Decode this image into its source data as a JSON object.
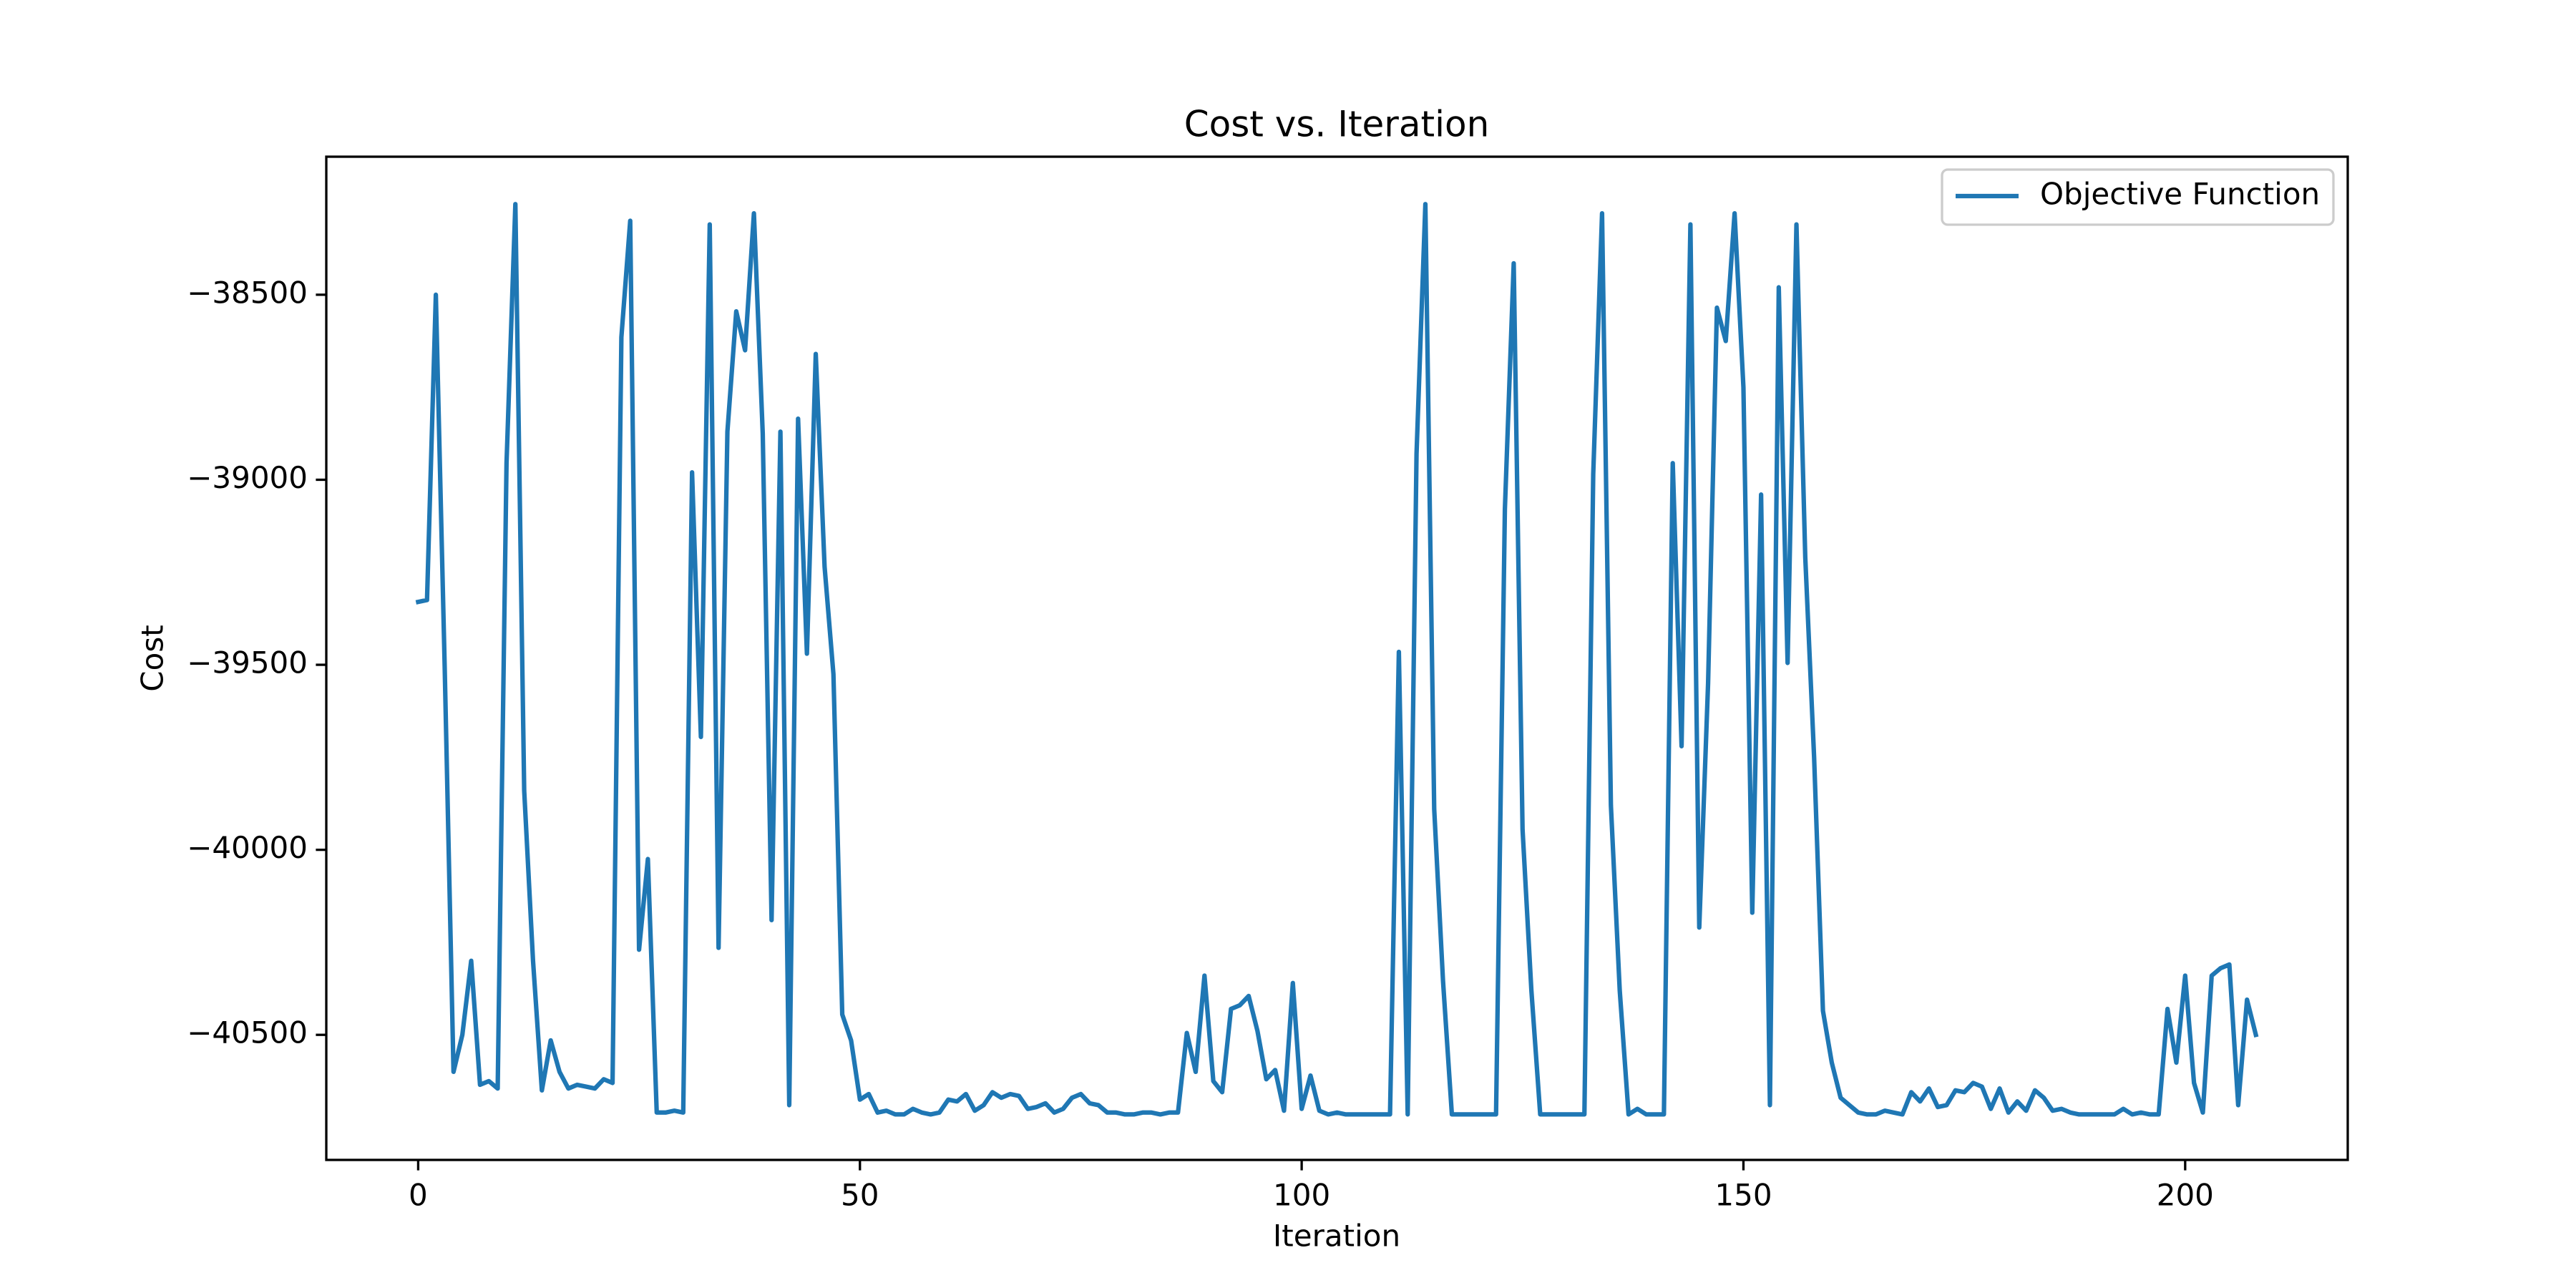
{
  "chart_data": {
    "type": "line",
    "title": "Cost vs. Iteration",
    "x_label": "Iteration",
    "y_label": "Cost",
    "legend": "upper right",
    "grid": false,
    "xlim": [
      -10.4,
      218.4
    ],
    "ylim": [
      -40838,
      -38127
    ],
    "xticks": [
      0,
      50,
      100,
      150,
      200
    ],
    "yticks": [
      {
        "value": -40500,
        "label": "−40500"
      },
      {
        "value": -40000,
        "label": "−40000"
      },
      {
        "value": -39500,
        "label": "−39500"
      },
      {
        "value": -39000,
        "label": "−39000"
      },
      {
        "value": -38500,
        "label": "−38500"
      }
    ],
    "x": [
      0,
      1,
      2,
      3,
      4,
      5,
      6,
      7,
      8,
      9,
      10,
      11,
      12,
      13,
      14,
      15,
      16,
      17,
      18,
      19,
      20,
      21,
      22,
      23,
      24,
      25,
      26,
      27,
      28,
      29,
      30,
      31,
      32,
      33,
      34,
      35,
      36,
      37,
      38,
      39,
      40,
      41,
      42,
      43,
      44,
      45,
      46,
      47,
      48,
      49,
      50,
      51,
      52,
      53,
      54,
      55,
      56,
      57,
      58,
      59,
      60,
      61,
      62,
      63,
      64,
      65,
      66,
      67,
      68,
      69,
      70,
      71,
      72,
      73,
      74,
      75,
      76,
      77,
      78,
      79,
      80,
      81,
      82,
      83,
      84,
      85,
      86,
      87,
      88,
      89,
      90,
      91,
      92,
      93,
      94,
      95,
      96,
      97,
      98,
      99,
      100,
      101,
      102,
      103,
      104,
      105,
      106,
      107,
      108,
      109,
      110,
      111,
      112,
      113,
      114,
      115,
      116,
      117,
      118,
      119,
      120,
      121,
      122,
      123,
      124,
      125,
      126,
      127,
      128,
      129,
      130,
      131,
      132,
      133,
      134,
      135,
      136,
      137,
      138,
      139,
      140,
      141,
      142,
      143,
      144,
      145,
      146,
      147,
      148,
      149,
      150,
      151,
      152,
      153,
      154,
      155,
      156,
      157,
      158,
      159,
      160,
      161,
      162,
      163,
      164,
      165,
      166,
      167,
      168,
      169,
      170,
      171,
      172,
      173,
      174,
      175,
      176,
      177,
      178,
      179,
      180,
      181,
      182,
      183,
      184,
      185,
      186,
      187,
      188,
      189,
      190,
      191,
      192,
      193,
      194,
      195,
      196,
      197,
      198,
      199,
      200,
      201,
      202,
      203,
      204,
      205,
      206,
      207,
      208
    ],
    "series": [
      {
        "name": "Objective Function",
        "color": "#1f77b4",
        "values": [
          -39330,
          -39325,
          -38500,
          -39505,
          -40600,
          -40500,
          -40300,
          -40635,
          -40625,
          -40645,
          -38955,
          -38255,
          -39840,
          -40300,
          -40650,
          -40515,
          -40600,
          -40645,
          -40635,
          -40640,
          -40645,
          -40620,
          -40630,
          -38615,
          -38300,
          -40270,
          -40025,
          -40710,
          -40710,
          -40705,
          -40710,
          -38980,
          -39695,
          -38310,
          -40265,
          -38870,
          -38545,
          -38650,
          -38280,
          -38875,
          -40190,
          -38870,
          -40690,
          -38835,
          -39470,
          -38660,
          -39235,
          -39525,
          -40445,
          -40515,
          -40675,
          -40660,
          -40710,
          -40705,
          -40715,
          -40715,
          -40700,
          -40710,
          -40715,
          -40710,
          -40675,
          -40680,
          -40660,
          -40705,
          -40690,
          -40655,
          -40670,
          -40660,
          -40665,
          -40700,
          -40695,
          -40685,
          -40710,
          -40700,
          -40670,
          -40660,
          -40685,
          -40690,
          -40710,
          -40710,
          -40715,
          -40715,
          -40710,
          -40710,
          -40715,
          -40710,
          -40710,
          -40495,
          -40600,
          -40340,
          -40625,
          -40655,
          -40430,
          -40420,
          -40395,
          -40490,
          -40620,
          -40595,
          -40705,
          -40360,
          -40700,
          -40610,
          -40705,
          -40715,
          -40710,
          -40715,
          -40715,
          -40715,
          -40715,
          -40715,
          -40715,
          -39465,
          -40715,
          -38930,
          -38255,
          -39890,
          -40355,
          -40715,
          -40715,
          -40715,
          -40715,
          -40715,
          -40715,
          -39080,
          -38415,
          -39945,
          -40380,
          -40715,
          -40715,
          -40715,
          -40715,
          -40715,
          -40715,
          -38985,
          -38280,
          -39880,
          -40380,
          -40715,
          -40700,
          -40715,
          -40715,
          -40715,
          -38955,
          -39720,
          -38310,
          -40210,
          -39550,
          -38535,
          -38625,
          -38280,
          -38750,
          -40170,
          -39040,
          -40690,
          -38480,
          -39495,
          -38310,
          -39210,
          -39750,
          -40435,
          -40575,
          -40670,
          -40690,
          -40710,
          -40715,
          -40715,
          -40705,
          -40710,
          -40715,
          -40655,
          -40680,
          -40645,
          -40695,
          -40690,
          -40650,
          -40655,
          -40630,
          -40640,
          -40700,
          -40645,
          -40710,
          -40680,
          -40705,
          -40650,
          -40670,
          -40705,
          -40700,
          -40710,
          -40715,
          -40715,
          -40715,
          -40715,
          -40715,
          -40700,
          -40715,
          -40710,
          -40715,
          -40715,
          -40430,
          -40575,
          -40340,
          -40630,
          -40710,
          -40340,
          -40320,
          -40310,
          -40690,
          -40405,
          -40500
        ]
      }
    ]
  }
}
